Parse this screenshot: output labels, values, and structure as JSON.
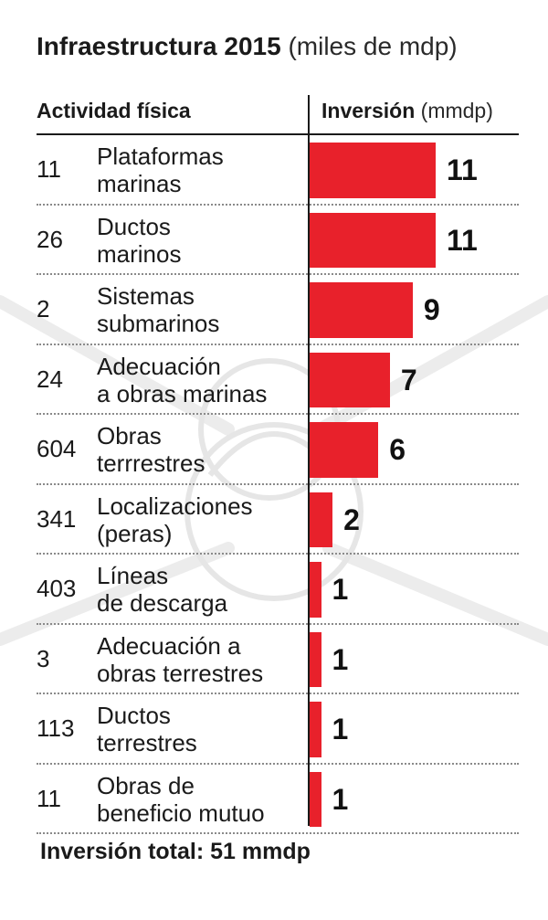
{
  "title": {
    "main": "Infraestructura 2015",
    "unit": "(miles de mdp)"
  },
  "columns": {
    "left": "Actividad física",
    "right_bold": "Inversión",
    "right_unit": "(mmdp)"
  },
  "total_label": "Inversión total: 51 mmdp",
  "colors": {
    "bar": "#e8212b",
    "text": "#1a1a1a"
  },
  "chart_data": {
    "type": "bar",
    "orientation": "horizontal",
    "title": "Infraestructura 2015 (miles de mdp)",
    "xlabel": "Inversión (mmdp)",
    "xlim": [
      0,
      11
    ],
    "grid": false,
    "legend": "none",
    "rows": [
      {
        "count": "11",
        "label": [
          "Plataformas",
          "marinas"
        ],
        "value": 11,
        "value_label": "11"
      },
      {
        "count": "26",
        "label": [
          "Ductos",
          "marinos"
        ],
        "value": 11,
        "value_label": "11"
      },
      {
        "count": "2",
        "label": [
          "Sistemas",
          "submarinos"
        ],
        "value": 9,
        "value_label": "9"
      },
      {
        "count": "24",
        "label": [
          "Adecuación",
          "a obras marinas"
        ],
        "value": 7,
        "value_label": "7"
      },
      {
        "count": "604",
        "label": [
          "Obras",
          "terrrestres"
        ],
        "value": 6,
        "value_label": "6"
      },
      {
        "count": "341",
        "label": [
          "Localizaciones",
          "(peras)"
        ],
        "value": 2,
        "value_label": "2"
      },
      {
        "count": "403",
        "label": [
          "Líneas",
          "de descarga"
        ],
        "value": 1,
        "value_label": "1"
      },
      {
        "count": "3",
        "label": [
          "Adecuación a",
          "obras terrestres"
        ],
        "value": 1,
        "value_label": "1"
      },
      {
        "count": "113",
        "label": [
          "Ductos",
          "terrestres"
        ],
        "value": 1,
        "value_label": "1"
      },
      {
        "count": "11",
        "label": [
          "Obras de",
          "beneficio mutuo"
        ],
        "value": 1,
        "value_label": "1"
      }
    ]
  }
}
